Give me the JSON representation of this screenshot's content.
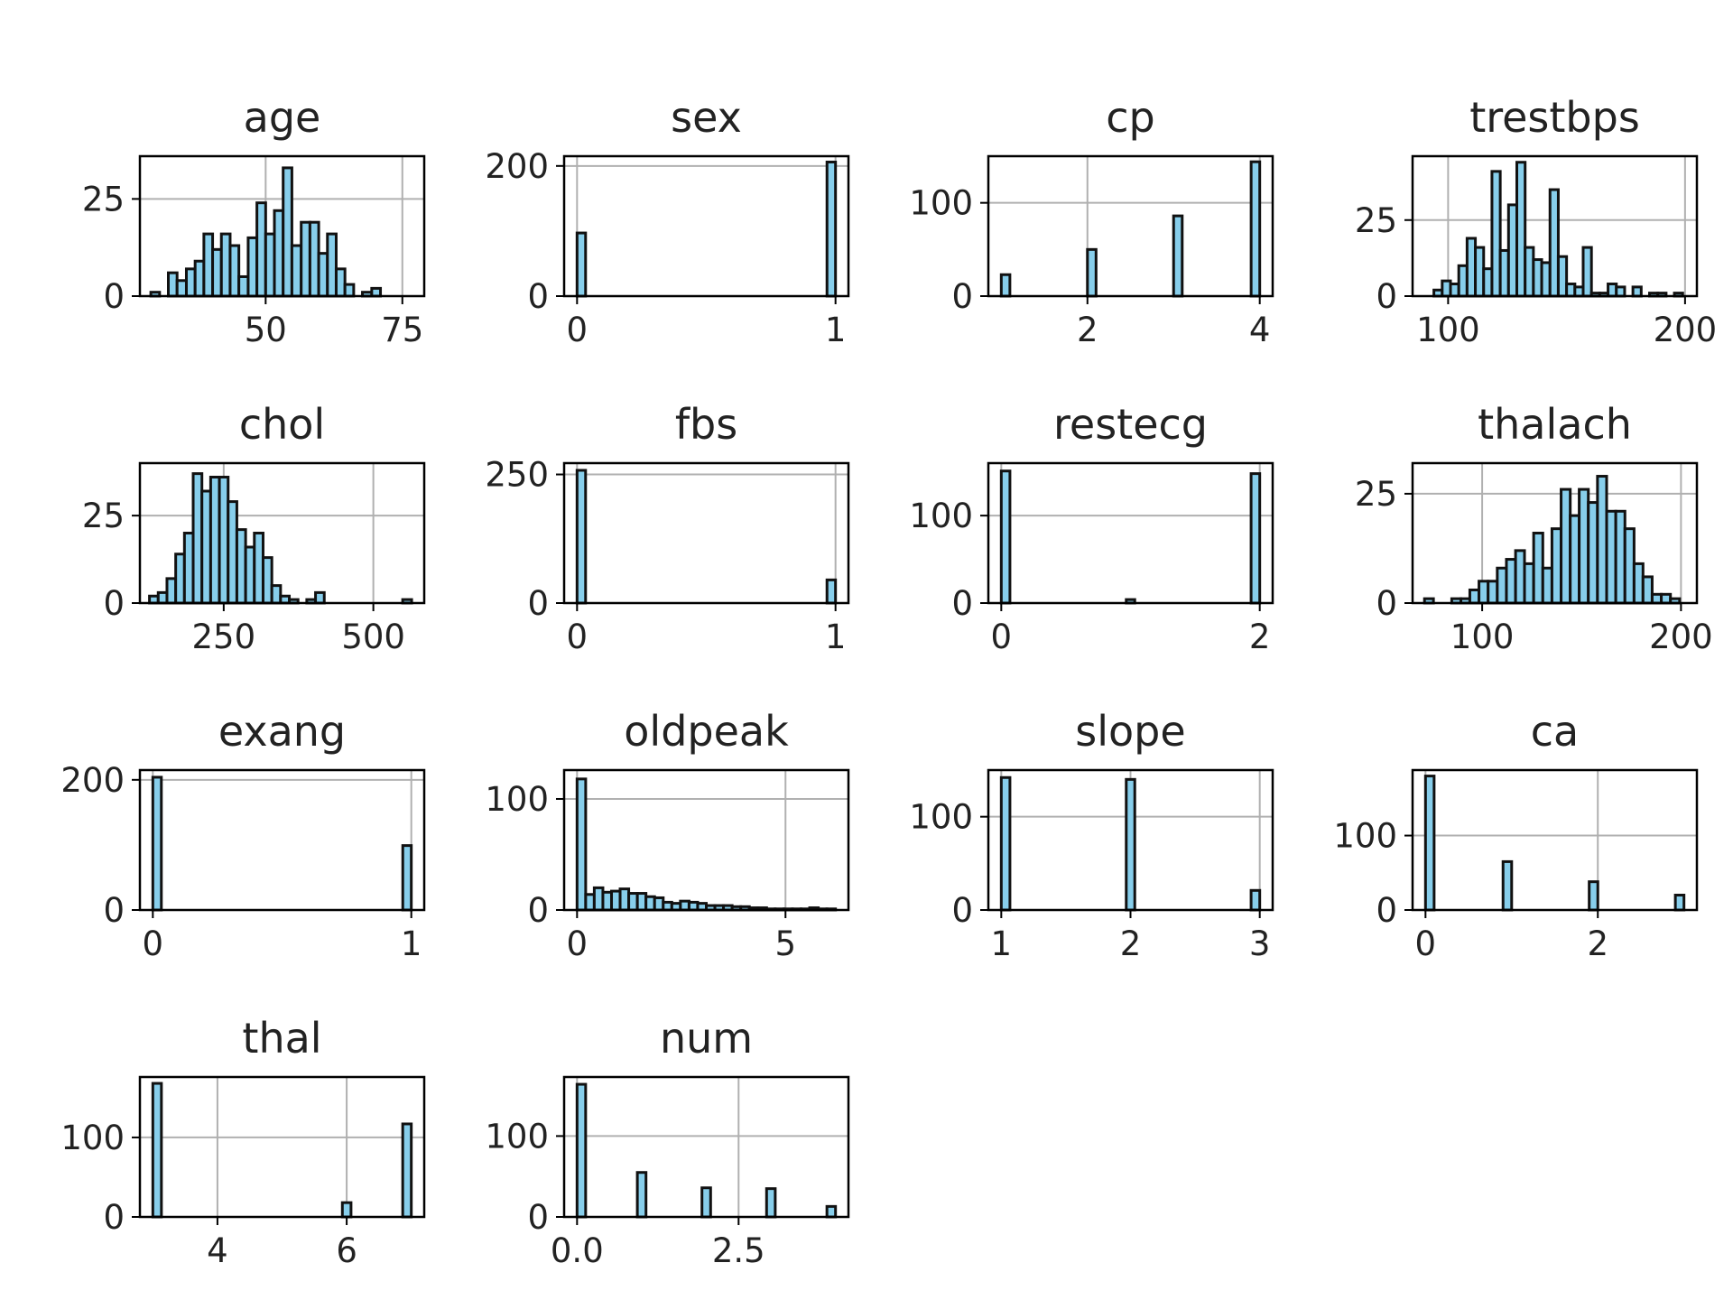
{
  "style": {
    "bar_fill": "#87ceeb",
    "bar_edge": "#111111",
    "grid_color": "#b0b0b0",
    "axis_color": "#000000",
    "background": "#ffffff"
  },
  "chart_data": [
    {
      "type": "bar",
      "title": "age",
      "grid": true,
      "xlim": [
        27,
        79
      ],
      "ylim": [
        0,
        36
      ],
      "xticks": [
        50,
        75
      ],
      "yticks": [
        0,
        25
      ],
      "bins": [
        [
          29,
          30.6,
          1
        ],
        [
          32.2,
          33.8,
          6
        ],
        [
          33.8,
          35.5,
          4
        ],
        [
          35.5,
          37.1,
          7
        ],
        [
          37.1,
          38.7,
          9
        ],
        [
          38.7,
          40.3,
          16
        ],
        [
          40.3,
          41.9,
          12
        ],
        [
          41.9,
          43.5,
          16
        ],
        [
          43.5,
          45.1,
          13
        ],
        [
          45.1,
          46.8,
          5
        ],
        [
          46.8,
          48.4,
          15
        ],
        [
          48.4,
          50,
          24
        ],
        [
          50,
          51.6,
          16
        ],
        [
          51.6,
          53.2,
          22
        ],
        [
          53.2,
          54.8,
          33
        ],
        [
          54.8,
          56.5,
          13
        ],
        [
          56.5,
          58.1,
          19
        ],
        [
          58.1,
          59.7,
          19
        ],
        [
          59.7,
          61.3,
          11
        ],
        [
          61.3,
          62.9,
          16
        ],
        [
          62.9,
          64.5,
          7
        ],
        [
          64.5,
          66.1,
          3
        ],
        [
          67.7,
          69.4,
          1
        ],
        [
          69.4,
          71,
          2
        ]
      ]
    },
    {
      "type": "bar",
      "title": "sex",
      "grid": true,
      "xlim": [
        -0.05,
        1.05
      ],
      "ylim": [
        0,
        215
      ],
      "xticks": [
        0,
        1
      ],
      "yticks": [
        0,
        200
      ],
      "bins": [
        [
          0,
          0.033,
          97
        ],
        [
          0.967,
          1,
          206
        ]
      ]
    },
    {
      "type": "bar",
      "title": "cp",
      "grid": true,
      "xlim": [
        0.85,
        4.15
      ],
      "ylim": [
        0,
        150
      ],
      "xticks": [
        2,
        4
      ],
      "yticks": [
        0,
        100
      ],
      "bins": [
        [
          1,
          1.1,
          23
        ],
        [
          2,
          2.1,
          50
        ],
        [
          3,
          3.1,
          86
        ],
        [
          3.9,
          4,
          144
        ]
      ]
    },
    {
      "type": "bar",
      "title": "trestbps",
      "grid": true,
      "xlim": [
        85,
        205
      ],
      "ylim": [
        0,
        46
      ],
      "xticks": [
        100,
        200
      ],
      "yticks": [
        0,
        25
      ],
      "bins": [
        [
          94,
          97.5,
          2
        ],
        [
          97.5,
          101,
          5
        ],
        [
          101,
          104.5,
          4
        ],
        [
          104.5,
          108,
          10
        ],
        [
          108,
          111.5,
          19
        ],
        [
          111.5,
          115,
          16
        ],
        [
          115,
          118.5,
          9
        ],
        [
          118.5,
          122,
          41
        ],
        [
          122,
          125.5,
          15
        ],
        [
          125.5,
          129,
          30
        ],
        [
          129,
          132.5,
          44
        ],
        [
          132.5,
          136,
          16
        ],
        [
          136,
          139.5,
          12
        ],
        [
          139.5,
          143,
          11
        ],
        [
          143,
          146.5,
          35
        ],
        [
          146.5,
          150,
          13
        ],
        [
          150,
          153.5,
          4
        ],
        [
          153.5,
          157,
          3
        ],
        [
          157,
          160.5,
          16
        ],
        [
          160.5,
          164,
          1
        ],
        [
          164,
          167.5,
          1
        ],
        [
          167.5,
          171,
          4
        ],
        [
          171,
          174.5,
          3
        ],
        [
          178,
          181.5,
          3
        ],
        [
          185,
          188.5,
          1
        ],
        [
          188.5,
          192,
          1
        ],
        [
          195.5,
          199,
          1
        ]
      ]
    },
    {
      "type": "bar",
      "title": "chol",
      "grid": true,
      "xlim": [
        110,
        585
      ],
      "ylim": [
        0,
        40
      ],
      "xticks": [
        250,
        500
      ],
      "yticks": [
        0,
        25
      ],
      "bins": [
        [
          126,
          140.6,
          2
        ],
        [
          140.6,
          155.2,
          3
        ],
        [
          155.2,
          169.8,
          7
        ],
        [
          169.8,
          184.4,
          14
        ],
        [
          184.4,
          199,
          20
        ],
        [
          199,
          213.6,
          37
        ],
        [
          213.6,
          228.2,
          32
        ],
        [
          228.2,
          242.8,
          36
        ],
        [
          242.8,
          257.4,
          36
        ],
        [
          257.4,
          272,
          29
        ],
        [
          272,
          286.6,
          21
        ],
        [
          286.6,
          301.2,
          16
        ],
        [
          301.2,
          315.8,
          20
        ],
        [
          315.8,
          330.4,
          13
        ],
        [
          330.4,
          345,
          5
        ],
        [
          345,
          359.6,
          2
        ],
        [
          359.6,
          374.2,
          1
        ],
        [
          388.8,
          403.4,
          1
        ],
        [
          403.4,
          418,
          3
        ],
        [
          549,
          564,
          1
        ]
      ]
    },
    {
      "type": "bar",
      "title": "fbs",
      "grid": true,
      "xlim": [
        -0.05,
        1.05
      ],
      "ylim": [
        0,
        272
      ],
      "xticks": [
        0,
        1
      ],
      "yticks": [
        0,
        250
      ],
      "bins": [
        [
          0,
          0.033,
          258
        ],
        [
          0.967,
          1,
          45
        ]
      ]
    },
    {
      "type": "bar",
      "title": "restecg",
      "grid": true,
      "xlim": [
        -0.1,
        2.1
      ],
      "ylim": [
        0,
        160
      ],
      "xticks": [
        0,
        2
      ],
      "yticks": [
        0,
        100
      ],
      "bins": [
        [
          0,
          0.067,
          151
        ],
        [
          0.967,
          1.033,
          4
        ],
        [
          1.933,
          2,
          148
        ]
      ]
    },
    {
      "type": "bar",
      "title": "thalach",
      "grid": true,
      "xlim": [
        65,
        208
      ],
      "ylim": [
        0,
        32
      ],
      "xticks": [
        100,
        200
      ],
      "yticks": [
        0,
        25
      ],
      "bins": [
        [
          71,
          75.5,
          1
        ],
        [
          84.7,
          89.3,
          1
        ],
        [
          89.3,
          93.8,
          1
        ],
        [
          93.8,
          98.4,
          3
        ],
        [
          98.4,
          103,
          5
        ],
        [
          103,
          107.6,
          5
        ],
        [
          107.6,
          112.2,
          8
        ],
        [
          112.2,
          116.8,
          10
        ],
        [
          116.8,
          121.3,
          12
        ],
        [
          121.3,
          125.9,
          9
        ],
        [
          125.9,
          130.5,
          16
        ],
        [
          130.5,
          135.1,
          8
        ],
        [
          135.1,
          139.7,
          17
        ],
        [
          139.7,
          144.3,
          26
        ],
        [
          144.3,
          148.8,
          20
        ],
        [
          148.8,
          153.4,
          26
        ],
        [
          153.4,
          158,
          23
        ],
        [
          158,
          162.6,
          29
        ],
        [
          162.6,
          167.2,
          21
        ],
        [
          167.2,
          171.8,
          21
        ],
        [
          171.8,
          176.4,
          17
        ],
        [
          176.4,
          180.9,
          9
        ],
        [
          180.9,
          185.5,
          6
        ],
        [
          185.5,
          190.1,
          2
        ],
        [
          190.1,
          194.7,
          2
        ],
        [
          194.7,
          199.3,
          1
        ]
      ]
    },
    {
      "type": "bar",
      "title": "exang",
      "grid": true,
      "xlim": [
        -0.05,
        1.05
      ],
      "ylim": [
        0,
        215
      ],
      "xticks": [
        0,
        1
      ],
      "yticks": [
        0,
        200
      ],
      "bins": [
        [
          0,
          0.033,
          204
        ],
        [
          0.967,
          1,
          99
        ]
      ]
    },
    {
      "type": "bar",
      "title": "oldpeak",
      "grid": true,
      "xlim": [
        -0.31,
        6.51
      ],
      "ylim": [
        0,
        126
      ],
      "xticks": [
        0,
        5
      ],
      "yticks": [
        0,
        100
      ],
      "bins": [
        [
          0,
          0.207,
          118
        ],
        [
          0.207,
          0.413,
          14
        ],
        [
          0.413,
          0.62,
          20
        ],
        [
          0.62,
          0.827,
          16
        ],
        [
          0.827,
          1.033,
          17
        ],
        [
          1.033,
          1.24,
          19
        ],
        [
          1.24,
          1.447,
          15
        ],
        [
          1.447,
          1.653,
          15
        ],
        [
          1.653,
          1.86,
          12
        ],
        [
          1.86,
          2.067,
          11
        ],
        [
          2.067,
          2.273,
          7
        ],
        [
          2.273,
          2.48,
          6
        ],
        [
          2.48,
          2.687,
          8
        ],
        [
          2.687,
          2.893,
          7
        ],
        [
          2.893,
          3.1,
          6
        ],
        [
          3.1,
          3.307,
          4
        ],
        [
          3.307,
          3.513,
          4
        ],
        [
          3.513,
          3.72,
          4
        ],
        [
          3.72,
          3.927,
          3
        ],
        [
          3.927,
          4.133,
          3
        ],
        [
          4.133,
          4.34,
          2
        ],
        [
          4.34,
          4.547,
          2
        ],
        [
          4.547,
          4.753,
          1
        ],
        [
          4.753,
          4.96,
          1
        ],
        [
          4.96,
          5.167,
          1
        ],
        [
          5.167,
          5.373,
          1
        ],
        [
          5.373,
          5.58,
          1
        ],
        [
          5.58,
          5.787,
          2
        ],
        [
          5.787,
          5.993,
          1
        ],
        [
          5.993,
          6.2,
          1
        ]
      ]
    },
    {
      "type": "bar",
      "title": "slope",
      "grid": true,
      "xlim": [
        0.9,
        3.1
      ],
      "ylim": [
        0,
        150
      ],
      "xticks": [
        1,
        2,
        3
      ],
      "yticks": [
        0,
        100
      ],
      "bins": [
        [
          1,
          1.067,
          142
        ],
        [
          1.967,
          2.033,
          140
        ],
        [
          2.933,
          3,
          21
        ]
      ]
    },
    {
      "type": "bar",
      "title": "ca",
      "grid": true,
      "xlim": [
        -0.15,
        3.15
      ],
      "ylim": [
        0,
        188
      ],
      "xticks": [
        0,
        2
      ],
      "yticks": [
        0,
        100
      ],
      "bins": [
        [
          0,
          0.1,
          180
        ],
        [
          0.9,
          1,
          65
        ],
        [
          1.9,
          2,
          38
        ],
        [
          2.9,
          3,
          20
        ]
      ]
    },
    {
      "type": "bar",
      "title": "thal",
      "grid": true,
      "xlim": [
        2.8,
        7.2
      ],
      "ylim": [
        0,
        176
      ],
      "xticks": [
        4,
        6
      ],
      "yticks": [
        0,
        100
      ],
      "bins": [
        [
          3,
          3.133,
          168
        ],
        [
          5.933,
          6.067,
          18
        ],
        [
          6.867,
          7,
          117
        ]
      ]
    },
    {
      "type": "bar",
      "title": "num",
      "grid": true,
      "xlim": [
        -0.2,
        4.2
      ],
      "ylim": [
        0,
        173
      ],
      "xticks": [
        0.0,
        2.5
      ],
      "xtick_labels": [
        "0.0",
        "2.5"
      ],
      "yticks": [
        0,
        100
      ],
      "bins": [
        [
          0,
          0.133,
          164
        ],
        [
          0.933,
          1.067,
          55
        ],
        [
          1.933,
          2.067,
          36
        ],
        [
          2.933,
          3.067,
          35
        ],
        [
          3.867,
          4,
          13
        ]
      ]
    }
  ]
}
